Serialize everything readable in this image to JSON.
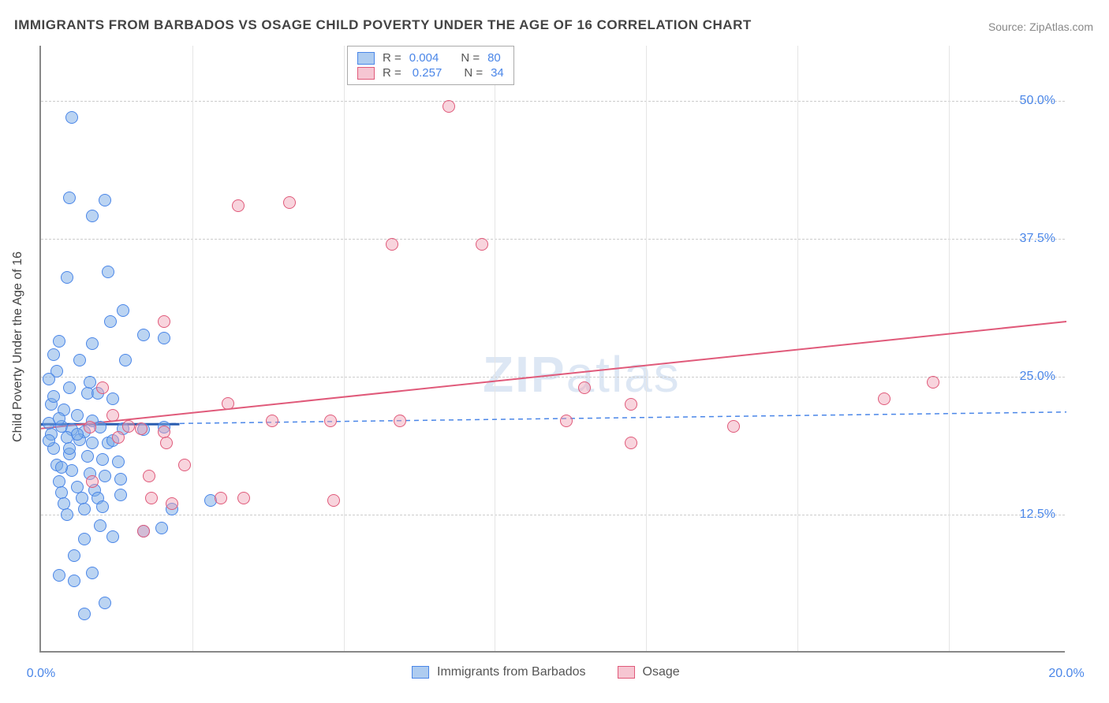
{
  "title": "IMMIGRANTS FROM BARBADOS VS OSAGE CHILD POVERTY UNDER THE AGE OF 16 CORRELATION CHART",
  "source_label": "Source:",
  "source_value": "ZipAtlas.com",
  "ylabel": "Child Poverty Under the Age of 16",
  "watermark_a": "ZIP",
  "watermark_b": "atlas",
  "chart": {
    "type": "scatter",
    "xlim": [
      0,
      20
    ],
    "ylim": [
      0,
      55
    ],
    "yticks": [
      12.5,
      25.0,
      37.5,
      50.0
    ],
    "ytick_labels": [
      "12.5%",
      "25.0%",
      "37.5%",
      "50.0%"
    ],
    "xtick_left": "0.0%",
    "xtick_right": "20.0%",
    "x_gridlines": [
      2.95,
      5.9,
      8.85,
      11.8,
      14.75,
      17.7
    ],
    "background_color": "#ffffff",
    "grid_color": "#cccccc",
    "axis_color": "#888888",
    "marker_radius": 8,
    "series": [
      {
        "name": "Immigrants from Barbados",
        "color_fill": "rgba(120,170,230,0.5)",
        "color_stroke": "#4a86e8",
        "r_value": "0.004",
        "n_value": "80",
        "trend": {
          "y_at_xmin": 20.6,
          "y_at_xmax": 21.8,
          "color": "#4a86e8",
          "dash": true,
          "width": 1.5
        },
        "solid_segment": {
          "x1": 0,
          "x2": 2.7,
          "y": 20.7,
          "color": "#2a5db0",
          "width": 3
        },
        "points": [
          [
            0.6,
            48.5
          ],
          [
            0.55,
            41.2
          ],
          [
            1.25,
            41.0
          ],
          [
            1.0,
            39.6
          ],
          [
            0.5,
            34.0
          ],
          [
            1.3,
            34.5
          ],
          [
            0.35,
            28.2
          ],
          [
            1.0,
            28.0
          ],
          [
            0.25,
            27.0
          ],
          [
            0.75,
            26.5
          ],
          [
            1.35,
            30.0
          ],
          [
            1.6,
            31.0
          ],
          [
            2.0,
            28.8
          ],
          [
            2.4,
            28.5
          ],
          [
            0.3,
            25.5
          ],
          [
            0.55,
            24.0
          ],
          [
            0.9,
            23.5
          ],
          [
            1.1,
            23.5
          ],
          [
            0.2,
            22.5
          ],
          [
            0.45,
            22.0
          ],
          [
            0.7,
            21.5
          ],
          [
            1.0,
            21.0
          ],
          [
            1.4,
            23.0
          ],
          [
            0.15,
            20.8
          ],
          [
            0.4,
            20.5
          ],
          [
            0.6,
            20.2
          ],
          [
            0.85,
            20.0
          ],
          [
            1.15,
            20.4
          ],
          [
            1.6,
            20.3
          ],
          [
            2.0,
            20.2
          ],
          [
            2.4,
            20.4
          ],
          [
            0.2,
            19.8
          ],
          [
            0.5,
            19.5
          ],
          [
            0.75,
            19.3
          ],
          [
            1.0,
            19.0
          ],
          [
            1.3,
            19.0
          ],
          [
            0.25,
            18.5
          ],
          [
            0.55,
            18.0
          ],
          [
            0.9,
            17.8
          ],
          [
            1.2,
            17.5
          ],
          [
            1.5,
            17.3
          ],
          [
            0.3,
            17.0
          ],
          [
            0.6,
            16.5
          ],
          [
            0.95,
            16.2
          ],
          [
            1.25,
            16.0
          ],
          [
            1.55,
            15.7
          ],
          [
            0.35,
            15.5
          ],
          [
            0.7,
            15.0
          ],
          [
            1.05,
            14.7
          ],
          [
            1.4,
            19.2
          ],
          [
            0.4,
            14.5
          ],
          [
            0.8,
            14.0
          ],
          [
            1.1,
            14.0
          ],
          [
            1.55,
            14.3
          ],
          [
            0.45,
            13.5
          ],
          [
            0.85,
            13.0
          ],
          [
            1.2,
            13.2
          ],
          [
            2.55,
            13.0
          ],
          [
            0.5,
            12.5
          ],
          [
            1.15,
            11.5
          ],
          [
            2.0,
            11.0
          ],
          [
            2.35,
            11.3
          ],
          [
            0.85,
            10.3
          ],
          [
            1.4,
            10.5
          ],
          [
            0.65,
            8.8
          ],
          [
            0.35,
            7.0
          ],
          [
            0.65,
            6.5
          ],
          [
            1.0,
            7.2
          ],
          [
            1.25,
            4.5
          ],
          [
            0.85,
            3.5
          ],
          [
            1.65,
            26.5
          ],
          [
            0.95,
            24.5
          ],
          [
            0.15,
            24.8
          ],
          [
            0.25,
            23.2
          ],
          [
            3.3,
            13.8
          ],
          [
            0.4,
            16.8
          ],
          [
            0.55,
            18.5
          ],
          [
            0.7,
            19.8
          ],
          [
            0.15,
            19.2
          ],
          [
            0.35,
            21.2
          ]
        ]
      },
      {
        "name": "Osage",
        "color_fill": "rgba(240,160,180,0.45)",
        "color_stroke": "#e05a7a",
        "r_value": "0.257",
        "n_value": "34",
        "trend": {
          "y_at_xmin": 20.3,
          "y_at_xmax": 30.0,
          "color": "#e05a7a",
          "dash": false,
          "width": 2
        },
        "points": [
          [
            7.95,
            49.5
          ],
          [
            3.85,
            40.5
          ],
          [
            4.85,
            40.8
          ],
          [
            6.85,
            37.0
          ],
          [
            8.6,
            37.0
          ],
          [
            10.25,
            21.0
          ],
          [
            10.6,
            24.0
          ],
          [
            11.5,
            22.5
          ],
          [
            11.5,
            19.0
          ],
          [
            13.5,
            20.5
          ],
          [
            16.45,
            23.0
          ],
          [
            17.4,
            24.5
          ],
          [
            3.65,
            22.6
          ],
          [
            4.5,
            21.0
          ],
          [
            5.65,
            21.0
          ],
          [
            7.0,
            21.0
          ],
          [
            3.5,
            14.0
          ],
          [
            3.95,
            14.0
          ],
          [
            5.7,
            13.8
          ],
          [
            2.4,
            20.0
          ],
          [
            2.15,
            14.0
          ],
          [
            2.55,
            13.5
          ],
          [
            2.0,
            11.0
          ],
          [
            2.45,
            19.0
          ],
          [
            1.7,
            20.5
          ],
          [
            1.95,
            20.3
          ],
          [
            2.4,
            30.0
          ],
          [
            2.1,
            16.0
          ],
          [
            2.8,
            17.0
          ],
          [
            1.2,
            24.0
          ],
          [
            1.4,
            21.5
          ],
          [
            1.0,
            15.5
          ],
          [
            0.95,
            20.4
          ],
          [
            1.5,
            19.5
          ]
        ]
      }
    ]
  },
  "legend_top": {
    "r_label": "R =",
    "n_label": "N ="
  }
}
